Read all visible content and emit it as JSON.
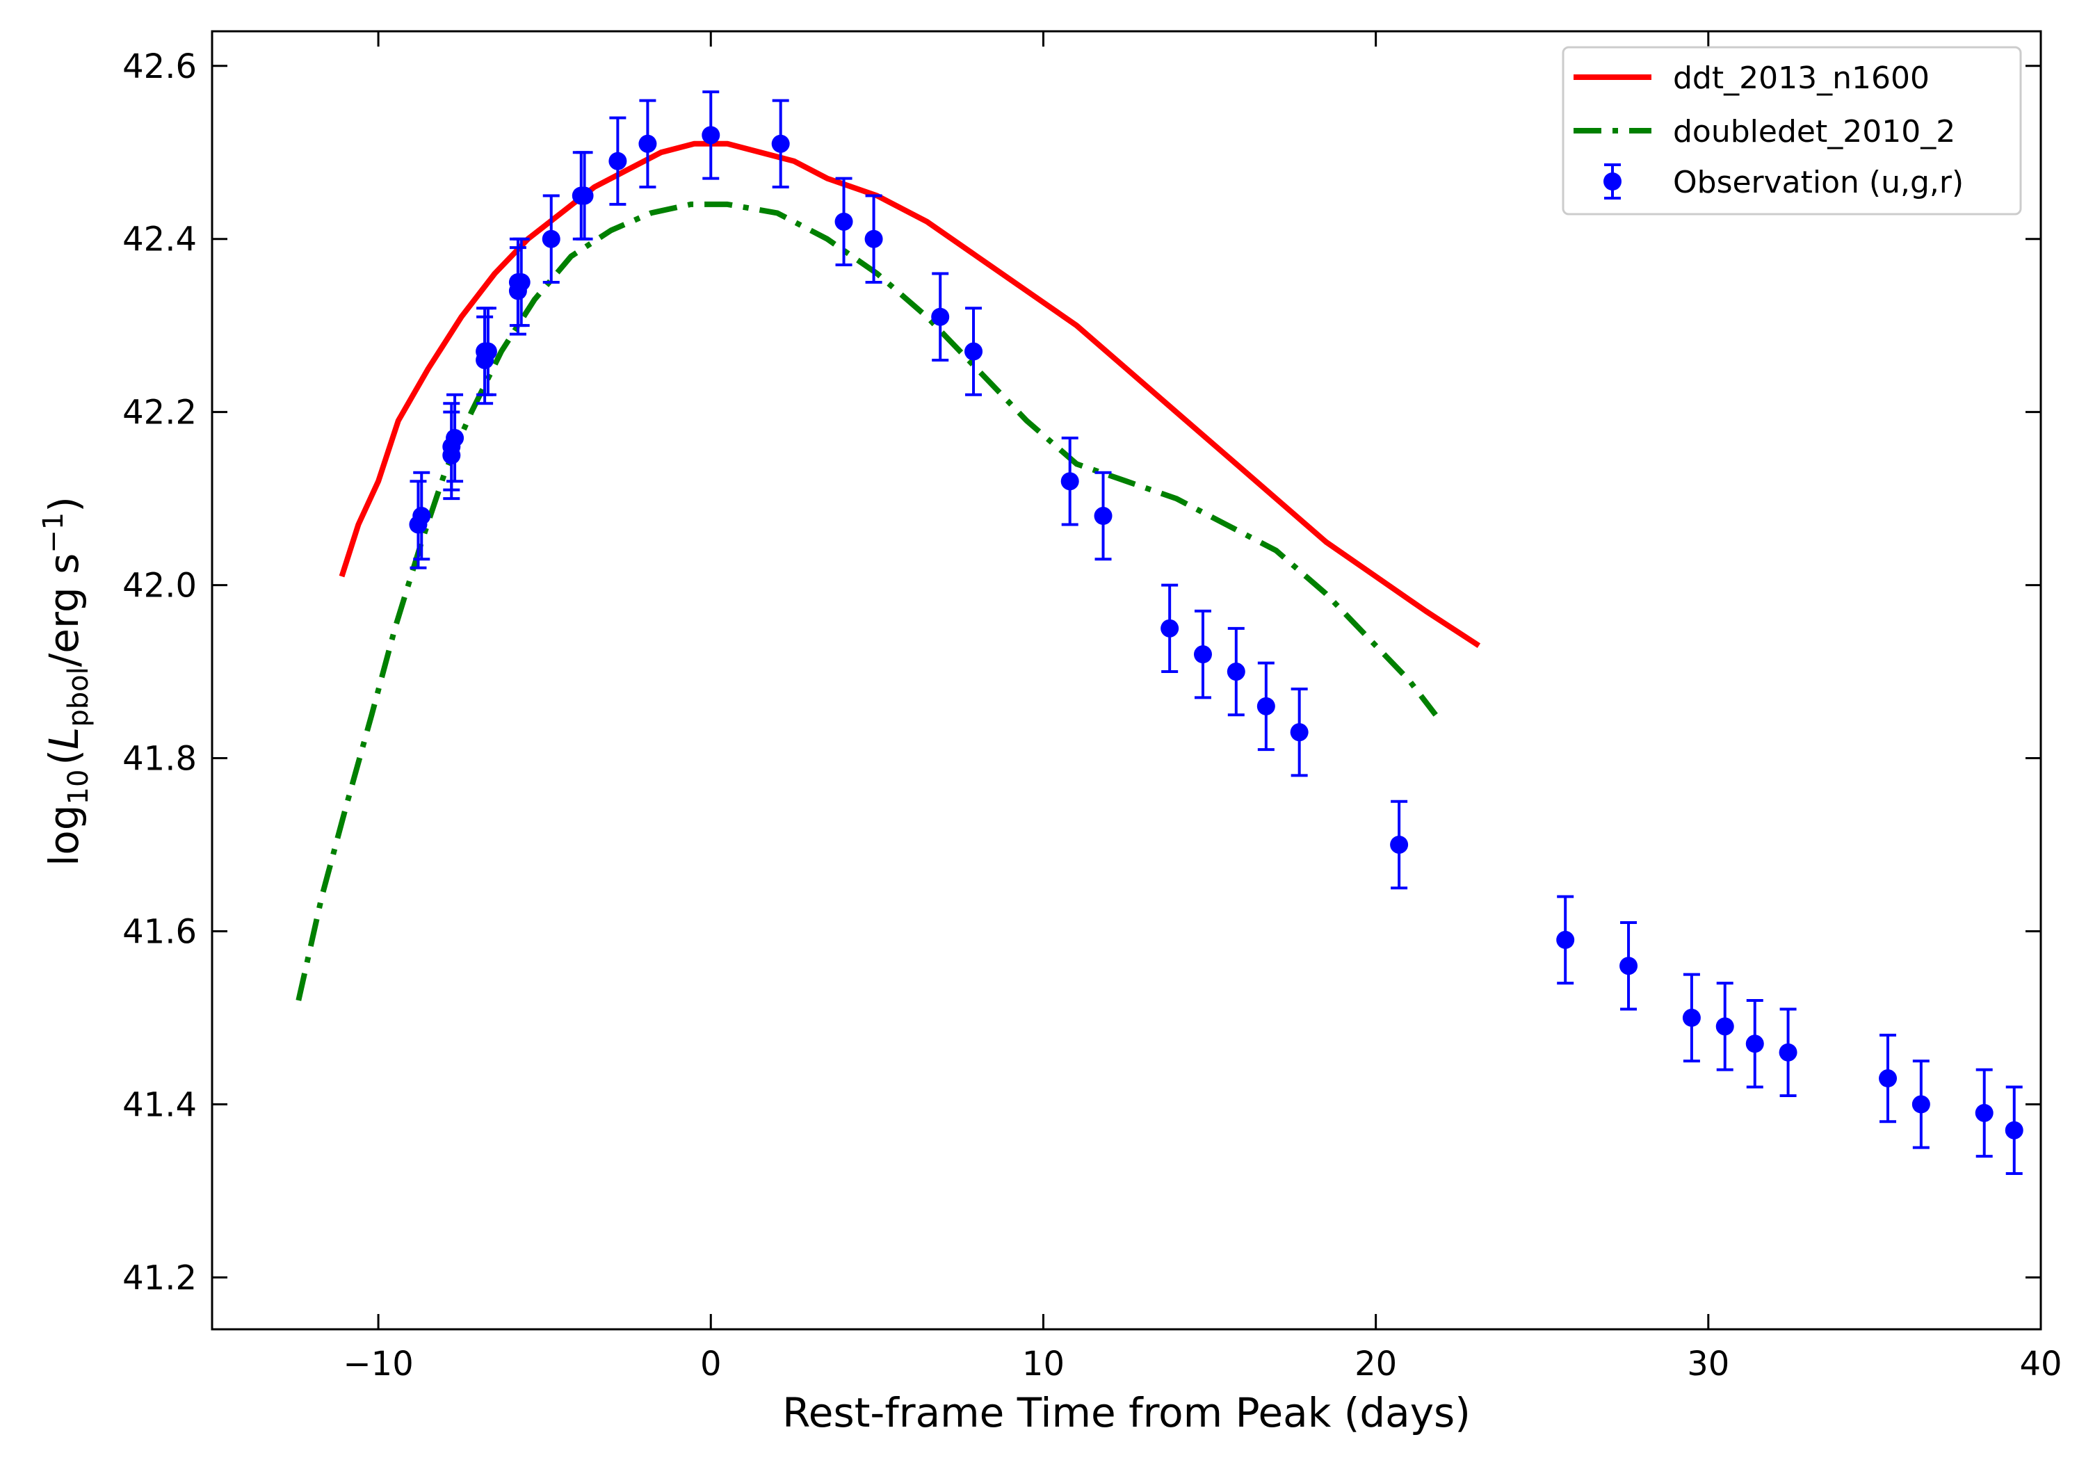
{
  "chart_data": {
    "type": "line",
    "xlabel": "Rest-frame Time from Peak (days)",
    "ylabel": {
      "prefix": "log",
      "prefix_sub": "10",
      "open": "(",
      "var": "L",
      "var_sub": "pbol",
      "unit": "/erg s",
      "unit_sup": "−1",
      "close": ")"
    },
    "xlim": [
      -15,
      40
    ],
    "ylim": [
      41.14,
      42.64
    ],
    "xticks": [
      -10,
      0,
      10,
      20,
      30,
      40
    ],
    "xtick_labels": [
      "−10",
      "0",
      "10",
      "20",
      "30",
      "40"
    ],
    "yticks": [
      41.2,
      41.4,
      41.6,
      41.8,
      42.0,
      42.2,
      42.4,
      42.6
    ],
    "ytick_labels": [
      "41.2",
      "41.4",
      "41.6",
      "41.8",
      "42.0",
      "42.2",
      "42.4",
      "42.6"
    ],
    "legend_position": "top-right",
    "series": [
      {
        "name": "ddt_2013_n1600",
        "style": "solid",
        "color": "#ff0000",
        "points": [
          [
            -11.1,
            42.01
          ],
          [
            -10.6,
            42.07
          ],
          [
            -10.0,
            42.12
          ],
          [
            -9.4,
            42.19
          ],
          [
            -8.5,
            42.25
          ],
          [
            -7.5,
            42.31
          ],
          [
            -6.5,
            42.36
          ],
          [
            -5.5,
            42.4
          ],
          [
            -4.5,
            42.43
          ],
          [
            -3.5,
            42.46
          ],
          [
            -2.5,
            42.48
          ],
          [
            -1.5,
            42.5
          ],
          [
            -0.5,
            42.51
          ],
          [
            0.5,
            42.51
          ],
          [
            1.5,
            42.5
          ],
          [
            2.5,
            42.49
          ],
          [
            3.5,
            42.47
          ],
          [
            5.0,
            42.45
          ],
          [
            6.5,
            42.42
          ],
          [
            8.0,
            42.38
          ],
          [
            9.5,
            42.34
          ],
          [
            11.0,
            42.3
          ],
          [
            12.5,
            42.25
          ],
          [
            14.0,
            42.2
          ],
          [
            15.5,
            42.15
          ],
          [
            17.0,
            42.1
          ],
          [
            18.5,
            42.05
          ],
          [
            20.0,
            42.01
          ],
          [
            21.5,
            41.97
          ],
          [
            23.1,
            41.93
          ]
        ]
      },
      {
        "name": "doubledet_2010_2",
        "style": "dashdot",
        "color": "#008000",
        "points": [
          [
            -12.4,
            41.52
          ],
          [
            -11.7,
            41.64
          ],
          [
            -11.0,
            41.74
          ],
          [
            -10.2,
            41.85
          ],
          [
            -9.5,
            41.95
          ],
          [
            -8.7,
            42.05
          ],
          [
            -8.0,
            42.13
          ],
          [
            -7.2,
            42.2
          ],
          [
            -6.3,
            42.27
          ],
          [
            -5.3,
            42.33
          ],
          [
            -4.2,
            42.38
          ],
          [
            -3.0,
            42.41
          ],
          [
            -1.8,
            42.43
          ],
          [
            -0.6,
            42.44
          ],
          [
            0.5,
            42.44
          ],
          [
            2.0,
            42.43
          ],
          [
            3.5,
            42.4
          ],
          [
            5.0,
            42.36
          ],
          [
            6.5,
            42.31
          ],
          [
            8.0,
            42.25
          ],
          [
            9.5,
            42.19
          ],
          [
            11.0,
            42.14
          ],
          [
            12.5,
            42.12
          ],
          [
            14.0,
            42.1
          ],
          [
            15.5,
            42.07
          ],
          [
            17.0,
            42.04
          ],
          [
            18.5,
            41.99
          ],
          [
            20.0,
            41.93
          ],
          [
            21.0,
            41.89
          ],
          [
            21.8,
            41.85
          ]
        ]
      }
    ],
    "observation": {
      "name": "Observation (u,g,r)",
      "color": "#0000ff",
      "x": [
        -8.8,
        -8.7,
        -7.8,
        -7.8,
        -7.7,
        -6.8,
        -6.8,
        -6.7,
        -5.8,
        -5.8,
        -5.7,
        -4.8,
        -3.9,
        -3.8,
        -2.8,
        -1.9,
        0.0,
        2.1,
        4.0,
        4.9,
        6.9,
        7.9,
        10.8,
        11.8,
        13.8,
        14.8,
        15.8,
        16.7,
        17.7,
        20.7,
        25.7,
        27.6,
        29.5,
        30.5,
        31.4,
        32.4,
        35.4,
        36.4,
        38.3,
        39.2
      ],
      "y": [
        42.07,
        42.08,
        42.15,
        42.16,
        42.17,
        42.26,
        42.27,
        42.27,
        42.34,
        42.35,
        42.35,
        42.4,
        42.45,
        42.45,
        42.49,
        42.51,
        42.52,
        42.51,
        42.42,
        42.4,
        42.31,
        42.27,
        42.12,
        42.08,
        41.95,
        41.92,
        41.9,
        41.86,
        41.83,
        41.7,
        41.59,
        41.56,
        41.5,
        41.49,
        41.47,
        41.46,
        41.43,
        41.4,
        41.39,
        41.37
      ],
      "yerr": 0.05
    }
  }
}
